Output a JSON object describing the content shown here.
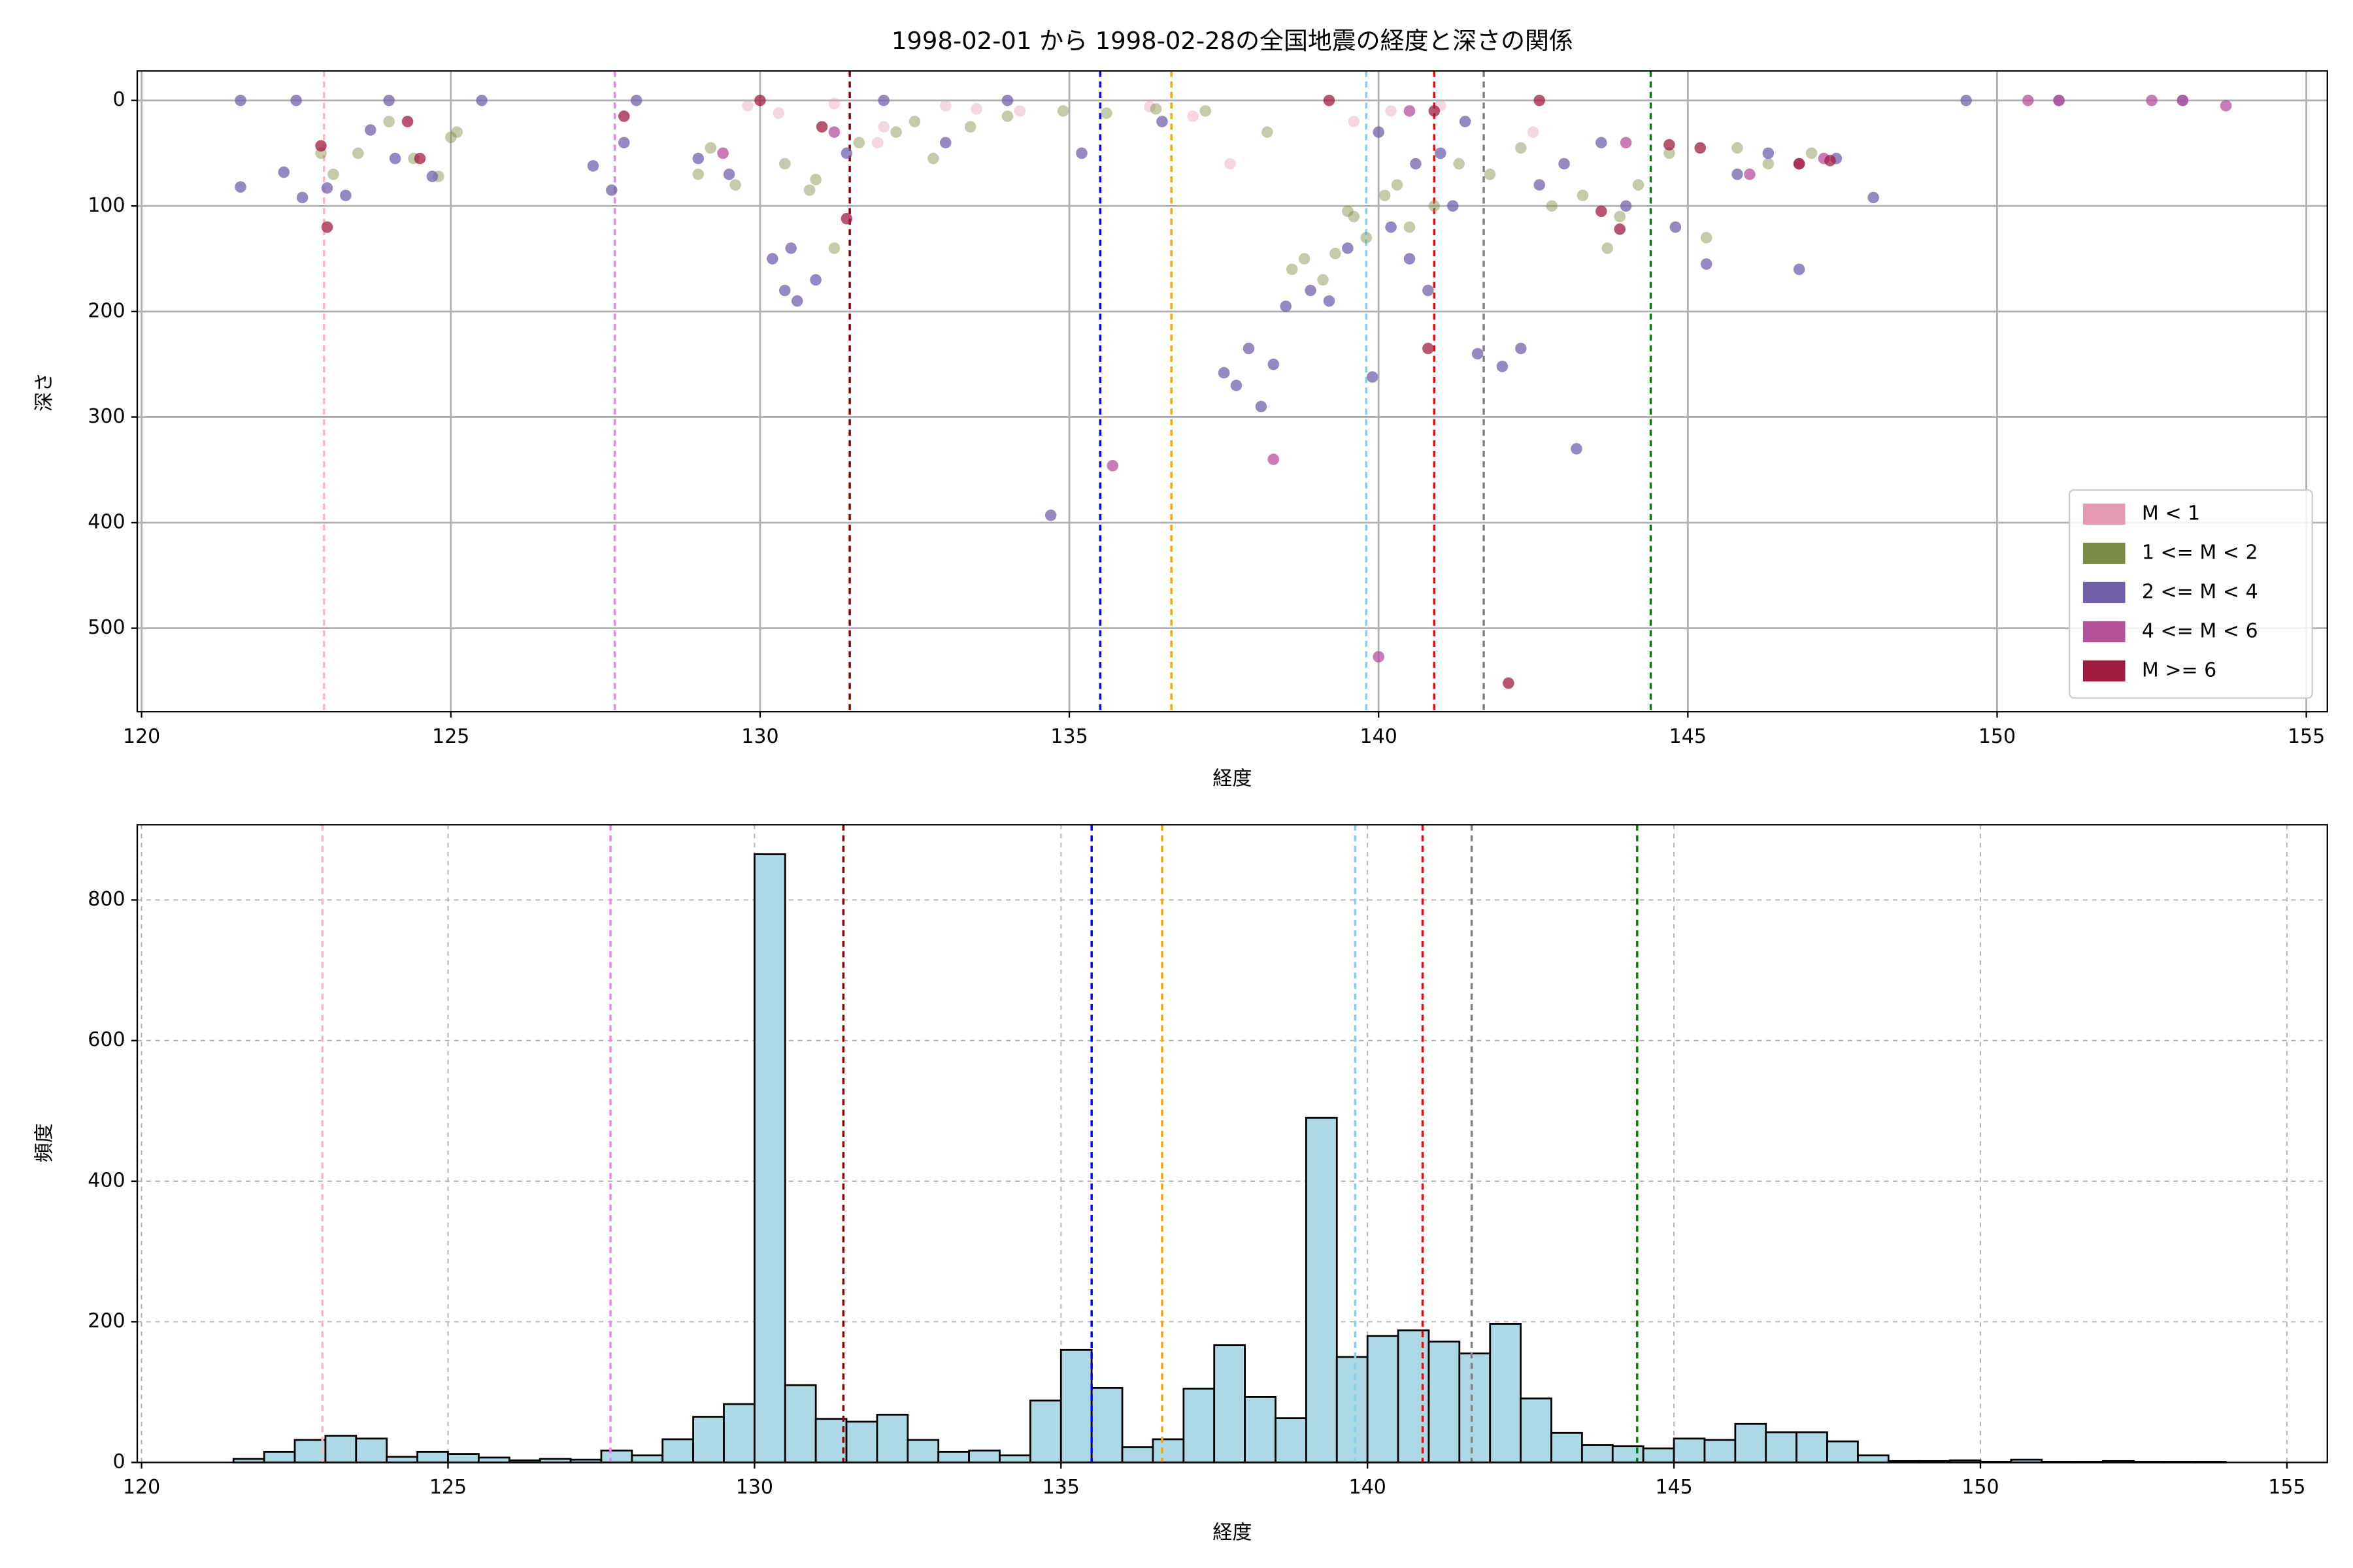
{
  "chart_data": [
    {
      "type": "scatter",
      "title": "1998-02-01 から 1998-02-28の全国地震の経度と深さの関係",
      "x_label": "経度",
      "y_label": "深さ",
      "xlim": [
        119.93,
        155.34
      ],
      "ylim": [
        579,
        -28
      ],
      "xticks": [
        120,
        125,
        130,
        135,
        140,
        145,
        150,
        155
      ],
      "yticks": [
        0,
        100,
        200,
        300,
        400,
        500
      ],
      "grid": true,
      "grid_style": "solid",
      "legend": "lower right",
      "reference_lines": [
        {
          "x": 122.95,
          "color": "#ffb6c1"
        },
        {
          "x": 127.65,
          "color": "#ee82ee"
        },
        {
          "x": 131.45,
          "color": "#8b0000"
        },
        {
          "x": 135.5,
          "color": "#0000ff"
        },
        {
          "x": 136.65,
          "color": "#ffa500"
        },
        {
          "x": 139.8,
          "color": "#87ceeb"
        },
        {
          "x": 140.9,
          "color": "#ff0000"
        },
        {
          "x": 141.7,
          "color": "#808080"
        },
        {
          "x": 144.4,
          "color": "#008000"
        }
      ],
      "series": [
        {
          "name": "M < 1",
          "color": "#e59ab3",
          "x": [
            129.8,
            130.3,
            131.2,
            132.0,
            133.5,
            134.2,
            136.3,
            137.0,
            137.6,
            139.6,
            140.2,
            141.0,
            142.5,
            131.9,
            133.0
          ],
          "values": [
            5,
            12,
            3,
            25,
            8,
            10,
            6,
            15,
            60,
            20,
            10,
            5,
            30,
            40,
            5
          ]
        },
        {
          "name": "1 <= M < 2",
          "color": "#7a8c45",
          "x": [
            123.1,
            123.5,
            124.0,
            124.4,
            125.0,
            129.2,
            129.6,
            130.4,
            130.9,
            131.6,
            132.2,
            132.8,
            133.4,
            134.0,
            134.9,
            135.6,
            136.4,
            137.2,
            138.2,
            138.8,
            139.3,
            139.6,
            139.8,
            140.1,
            140.5,
            140.9,
            141.3,
            141.8,
            142.3,
            142.8,
            143.3,
            143.9,
            144.7,
            145.3,
            145.8,
            146.3,
            147.0,
            131.2,
            130.8,
            139.1,
            139.5,
            138.6,
            140.3,
            143.7,
            124.8,
            125.1,
            122.9,
            129.0,
            132.5,
            144.2
          ],
          "values": [
            70,
            50,
            20,
            55,
            35,
            45,
            80,
            60,
            75,
            40,
            30,
            55,
            25,
            15,
            10,
            12,
            8,
            10,
            30,
            150,
            145,
            110,
            130,
            90,
            120,
            100,
            60,
            70,
            45,
            100,
            90,
            110,
            50,
            130,
            45,
            60,
            50,
            140,
            85,
            170,
            105,
            160,
            80,
            140,
            72,
            30,
            50,
            70,
            20,
            80
          ]
        },
        {
          "name": "2 <= M < 4",
          "color": "#7360ab",
          "x": [
            121.6,
            122.3,
            122.6,
            123.0,
            123.3,
            123.7,
            124.1,
            124.7,
            121.6,
            122.5,
            124.0,
            125.5,
            127.3,
            127.6,
            127.8,
            128.0,
            129.0,
            129.5,
            130.2,
            130.4,
            130.5,
            130.6,
            130.9,
            131.4,
            132.0,
            133.0,
            134.0,
            134.7,
            135.2,
            136.5,
            137.5,
            137.7,
            137.9,
            138.1,
            138.3,
            138.5,
            138.9,
            139.2,
            139.5,
            139.9,
            140.2,
            140.5,
            140.8,
            141.2,
            141.6,
            142.0,
            142.3,
            142.6,
            143.0,
            143.2,
            143.6,
            144.0,
            144.8,
            145.3,
            145.8,
            146.3,
            146.8,
            147.4,
            148.0,
            149.5,
            151.0,
            153.0,
            140.0,
            141.0,
            141.4,
            140.6
          ],
          "values": [
            82,
            68,
            92,
            83,
            90,
            28,
            55,
            72,
            0,
            0,
            0,
            0,
            62,
            85,
            40,
            0,
            55,
            70,
            150,
            180,
            140,
            190,
            170,
            50,
            0,
            40,
            0,
            393,
            50,
            20,
            258,
            270,
            235,
            290,
            250,
            195,
            180,
            190,
            140,
            262,
            120,
            150,
            180,
            100,
            240,
            252,
            235,
            80,
            60,
            330,
            40,
            100,
            120,
            155,
            70,
            50,
            160,
            55,
            92,
            0,
            0,
            0,
            30,
            50,
            20,
            60
          ]
        },
        {
          "name": "4 <= M < 6",
          "color": "#b5509b",
          "x": [
            135.7,
            138.3,
            140.0,
            146.0,
            146.8,
            147.2,
            150.5,
            151.0,
            152.5,
            153.0,
            153.7,
            129.4,
            131.2,
            140.5,
            144.0
          ],
          "values": [
            346,
            340,
            527,
            70,
            60,
            55,
            0,
            0,
            0,
            0,
            5,
            50,
            30,
            10,
            40
          ]
        },
        {
          "name": "M >= 6",
          "color": "#a01c40",
          "x": [
            123.0,
            122.9,
            124.3,
            124.5,
            127.8,
            131.4,
            130.0,
            131.0,
            139.2,
            140.9,
            142.1,
            142.6,
            143.9,
            144.7,
            145.2,
            146.8,
            147.3,
            140.8,
            143.6
          ],
          "values": [
            120,
            43,
            20,
            55,
            15,
            112,
            0,
            25,
            0,
            10,
            552,
            0,
            122,
            42,
            45,
            60,
            57,
            235,
            105
          ]
        }
      ]
    },
    {
      "type": "histogram",
      "x_label": "経度",
      "y_label": "頻度",
      "color": "#add8e6",
      "xlim": [
        119.93,
        155.66
      ],
      "ylim": [
        0,
        907
      ],
      "xticks": [
        120,
        125,
        130,
        135,
        140,
        145,
        150,
        155
      ],
      "yticks": [
        0,
        200,
        400,
        600,
        800
      ],
      "grid": true,
      "grid_style": "dashed",
      "reference_lines": [
        {
          "x": 122.95,
          "color": "#ffb6c1"
        },
        {
          "x": 127.65,
          "color": "#ee82ee"
        },
        {
          "x": 131.45,
          "color": "#8b0000"
        },
        {
          "x": 135.5,
          "color": "#0000ff"
        },
        {
          "x": 136.65,
          "color": "#ffa500"
        },
        {
          "x": 139.8,
          "color": "#87ceeb"
        },
        {
          "x": 140.9,
          "color": "#ff0000"
        },
        {
          "x": 141.7,
          "color": "#808080"
        },
        {
          "x": 144.4,
          "color": "#008000"
        }
      ],
      "bins": [
        121.5,
        122,
        122.5,
        123,
        123.5,
        124,
        124.5,
        125,
        125.5,
        126,
        126.5,
        127,
        127.5,
        128,
        128.5,
        129,
        129.5,
        130,
        130.5,
        131,
        131.5,
        132,
        132.5,
        133,
        133.5,
        134,
        134.5,
        135,
        135.5,
        136,
        136.5,
        137,
        137.5,
        138,
        138.5,
        139,
        139.5,
        140,
        140.5,
        141,
        141.5,
        142,
        142.5,
        143,
        143.5,
        144,
        144.5,
        145,
        145.5,
        146,
        146.5,
        147,
        147.5,
        148,
        148.5,
        149,
        149.5,
        150,
        150.5,
        151,
        151.5,
        152,
        152.5,
        153,
        153.5,
        154
      ],
      "values": [
        5,
        15,
        32,
        38,
        34,
        8,
        15,
        12,
        7,
        3,
        5,
        4,
        17,
        10,
        33,
        65,
        83,
        865,
        110,
        62,
        58,
        68,
        32,
        15,
        17,
        10,
        88,
        160,
        106,
        22,
        33,
        105,
        167,
        93,
        63,
        490,
        150,
        180,
        188,
        172,
        155,
        197,
        91,
        42,
        25,
        23,
        20,
        34,
        32,
        55,
        43,
        43,
        30,
        10,
        2,
        2,
        3,
        1,
        4,
        1,
        1,
        2,
        1,
        1,
        1
      ]
    }
  ]
}
